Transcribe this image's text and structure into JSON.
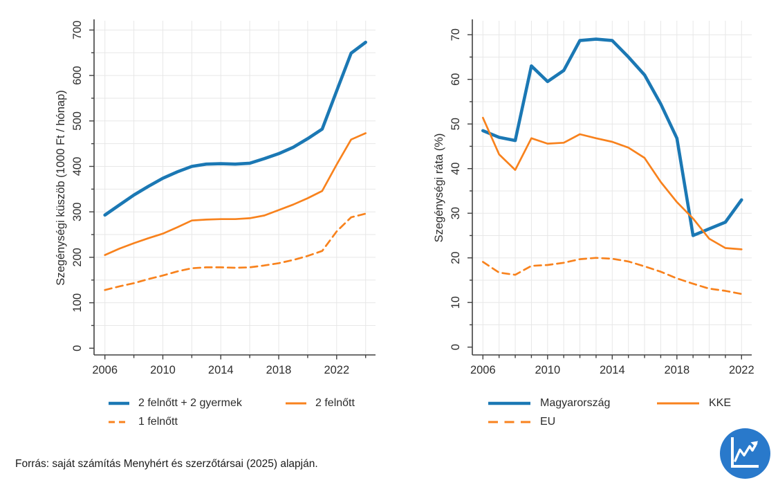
{
  "page": {
    "source_note": "Forrás: saját számítás Menyhért és szerzőtársai (2025) alapján.",
    "icon": "line-chart-icon"
  },
  "colors": {
    "blue": "#1B78B4",
    "orange": "#F8821D",
    "grid": "#E7E7E7",
    "axis": "#3F3F3F",
    "text": "#2E2E2E",
    "icon_blue": "#2979CB",
    "background": "#FFFFFF"
  },
  "chart_data": [
    {
      "type": "line",
      "ylabel": "Szegénységi küszöb (1000 Ft / hónap)",
      "xlim": [
        2006,
        2024
      ],
      "ylim": [
        0,
        700
      ],
      "x_tick_labels": [
        "2006",
        "2010",
        "2014",
        "2018",
        "2022"
      ],
      "y_tick_labels": [
        "0",
        "100",
        "200",
        "300",
        "400",
        "500",
        "600",
        "700"
      ],
      "grid": true,
      "legend_position": "bottom",
      "x": [
        2006,
        2007,
        2008,
        2009,
        2010,
        2011,
        2012,
        2013,
        2014,
        2015,
        2016,
        2017,
        2018,
        2019,
        2020,
        2021,
        2022,
        2023,
        2024
      ],
      "series": [
        {
          "name": "2 felnőtt + 2 gyermek",
          "color": "blue",
          "style": "solid-thick",
          "values": [
            293,
            315,
            337,
            356,
            374,
            388,
            400,
            405,
            406,
            405,
            407,
            417,
            428,
            442,
            461,
            482,
            566,
            649,
            673
          ]
        },
        {
          "name": "2 felnőtt",
          "color": "orange",
          "style": "solid",
          "values": [
            205,
            219,
            231,
            242,
            252,
            266,
            281,
            283,
            284,
            284,
            286,
            292,
            304,
            316,
            330,
            346,
            404,
            459,
            473
          ]
        },
        {
          "name": "1 felnőtt",
          "color": "orange",
          "style": "dashed",
          "values": [
            128,
            136,
            143,
            152,
            160,
            169,
            176,
            178,
            178,
            177,
            178,
            182,
            187,
            194,
            203,
            214,
            257,
            288,
            296
          ]
        }
      ]
    },
    {
      "type": "line",
      "ylabel": "Szegénységi ráta (%)",
      "xlim": [
        2006,
        2022
      ],
      "ylim": [
        0,
        70
      ],
      "x_tick_labels": [
        "2006",
        "2010",
        "2014",
        "2018",
        "2022"
      ],
      "y_tick_labels": [
        "0",
        "10",
        "20",
        "30",
        "40",
        "50",
        "60",
        "70"
      ],
      "grid": true,
      "legend_position": "bottom",
      "x": [
        2006,
        2007,
        2008,
        2009,
        2010,
        2011,
        2012,
        2013,
        2014,
        2015,
        2016,
        2017,
        2018,
        2019,
        2020,
        2021,
        2022
      ],
      "series": [
        {
          "name": "Magyarország",
          "color": "blue",
          "style": "solid-thick",
          "values": [
            48.5,
            47,
            46.3,
            63,
            59.5,
            62,
            68.7,
            69,
            68.7,
            65,
            61,
            54.5,
            46.8,
            25,
            26.5,
            28,
            33
          ]
        },
        {
          "name": "KKE",
          "color": "orange",
          "style": "solid",
          "values": [
            51.4,
            43.2,
            39.7,
            46.8,
            45.6,
            45.8,
            47.7,
            46.8,
            46,
            44.7,
            42.4,
            37,
            32.5,
            28.8,
            24.3,
            22.2,
            21.9
          ]
        },
        {
          "name": "EU",
          "color": "orange",
          "style": "dashed",
          "values": [
            19.1,
            16.7,
            16.2,
            18.2,
            18.4,
            18.9,
            19.7,
            20,
            19.8,
            19.2,
            18.1,
            16.9,
            15.4,
            14.2,
            13.1,
            12.6,
            11.9
          ]
        }
      ]
    }
  ]
}
